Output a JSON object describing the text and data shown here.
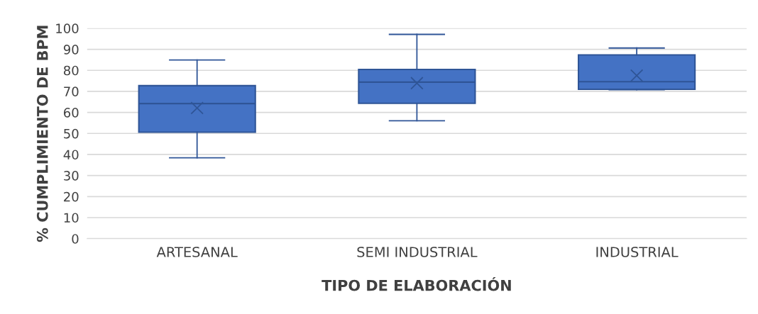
{
  "chart_data": {
    "type": "box",
    "xlabel": "TIPO DE ELABORACIÓN",
    "ylabel": "% CUMPLIMIENTO DE BPM",
    "categories": [
      "ARTESANAL",
      "SEMI INDUSTRIAL",
      "INDUSTRIAL"
    ],
    "color": "#4472c4",
    "boxes": [
      {
        "low": 38.4,
        "q1": 50.6,
        "median": 64.2,
        "q3": 72.7,
        "high": 84.9,
        "mean": 62.1
      },
      {
        "low": 56.0,
        "q1": 64.3,
        "median": 74.4,
        "q3": 80.4,
        "high": 97.1,
        "mean": 73.9
      },
      {
        "low": 70.8,
        "q1": 71.0,
        "median": 74.6,
        "q3": 87.3,
        "high": 90.6,
        "mean": 77.5
      }
    ],
    "ylim": [
      0,
      100
    ],
    "yticks": [
      0,
      10,
      20,
      30,
      40,
      50,
      60,
      70,
      80,
      90,
      100
    ],
    "grid": "y",
    "legend": false
  }
}
